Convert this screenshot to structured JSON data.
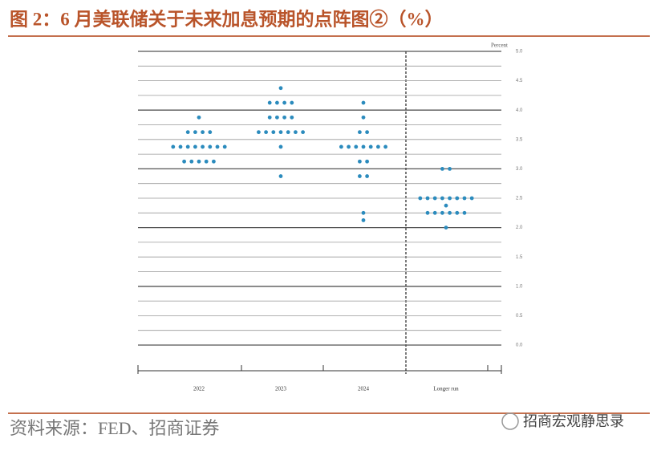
{
  "header": {
    "title": "图 2：6 月美联储关于未来加息预期的点阵图②（%）"
  },
  "chart_data": {
    "type": "dotplot",
    "y_label": "Percent",
    "categories": [
      "2022",
      "2023",
      "2024",
      "Longer run"
    ],
    "dots": [
      [
        {
          "value": 3.875,
          "count": 1
        },
        {
          "value": 3.625,
          "count": 4
        },
        {
          "value": 3.375,
          "count": 8
        },
        {
          "value": 3.125,
          "count": 5
        }
      ],
      [
        {
          "value": 4.375,
          "count": 1
        },
        {
          "value": 4.125,
          "count": 4
        },
        {
          "value": 3.875,
          "count": 4
        },
        {
          "value": 3.625,
          "count": 7
        },
        {
          "value": 3.375,
          "count": 1
        },
        {
          "value": 2.875,
          "count": 1
        }
      ],
      [
        {
          "value": 4.125,
          "count": 1
        },
        {
          "value": 3.875,
          "count": 1
        },
        {
          "value": 3.625,
          "count": 2
        },
        {
          "value": 3.375,
          "count": 7
        },
        {
          "value": 3.125,
          "count": 2
        },
        {
          "value": 2.875,
          "count": 2
        },
        {
          "value": 2.25,
          "count": 1
        },
        {
          "value": 2.125,
          "count": 1
        }
      ],
      [
        {
          "value": 3.0,
          "count": 2
        },
        {
          "value": 2.5,
          "count": 8
        },
        {
          "value": 2.375,
          "count": 1
        },
        {
          "value": 2.25,
          "count": 6
        },
        {
          "value": 2.0,
          "count": 1
        }
      ]
    ],
    "color": "#2b8bbd",
    "ylim": [
      0,
      5
    ],
    "yticks": [
      {
        "value": 0,
        "label": "0.0"
      },
      {
        "value": 0.5,
        "label": "0.5"
      },
      {
        "value": 1,
        "label": "1.0"
      },
      {
        "value": 1.5,
        "label": "1.5"
      },
      {
        "value": 2,
        "label": "2.0"
      },
      {
        "value": 2.5,
        "label": "2.5"
      },
      {
        "value": 3,
        "label": "3.0"
      },
      {
        "value": 3.5,
        "label": "3.5"
      },
      {
        "value": 4,
        "label": "4.0"
      },
      {
        "value": 4.5,
        "label": "4.5"
      },
      {
        "value": 5,
        "label": "5.0"
      }
    ],
    "minor_yticks": [
      0.25,
      0.75,
      1.25,
      1.75,
      2.25,
      2.75,
      3.25,
      3.75,
      4.25,
      4.75
    ],
    "grid": true
  },
  "footer": {
    "source": "资料来源：FED、招商证券",
    "watermark": "招商宏观静思录"
  }
}
